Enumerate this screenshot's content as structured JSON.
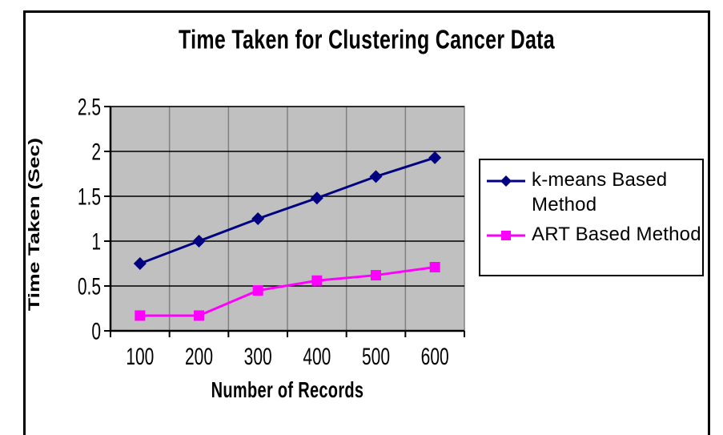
{
  "chart_data": {
    "type": "line",
    "title": "Time Taken for Clustering Cancer Data",
    "xlabel": "Number of Records",
    "ylabel": "Time Taken (Sec)",
    "categories": [
      "100",
      "200",
      "300",
      "400",
      "500",
      "600"
    ],
    "series": [
      {
        "name": "k-means Based Method",
        "marker": "diamond",
        "color": "#000080",
        "values": [
          0.75,
          1.0,
          1.25,
          1.48,
          1.72,
          1.93
        ]
      },
      {
        "name": "ART Based Method",
        "marker": "square",
        "color": "#FF00FF",
        "values": [
          0.17,
          0.17,
          0.45,
          0.56,
          0.62,
          0.71
        ]
      }
    ],
    "ylim": [
      0,
      2.5
    ],
    "ytick_step": 0.5,
    "yticks": [
      "0",
      "0.5",
      "1",
      "1.5",
      "2",
      "2.5"
    ],
    "grid": {
      "horizontal": true,
      "vertical": true
    },
    "legend_position": "right",
    "colors": {
      "plot_bg": "#C0C0C0",
      "h_gridline": "#000000",
      "v_gridline": "#808080",
      "axis": "#000000",
      "frame_border": "#000000",
      "legend_border": "#000000"
    }
  }
}
